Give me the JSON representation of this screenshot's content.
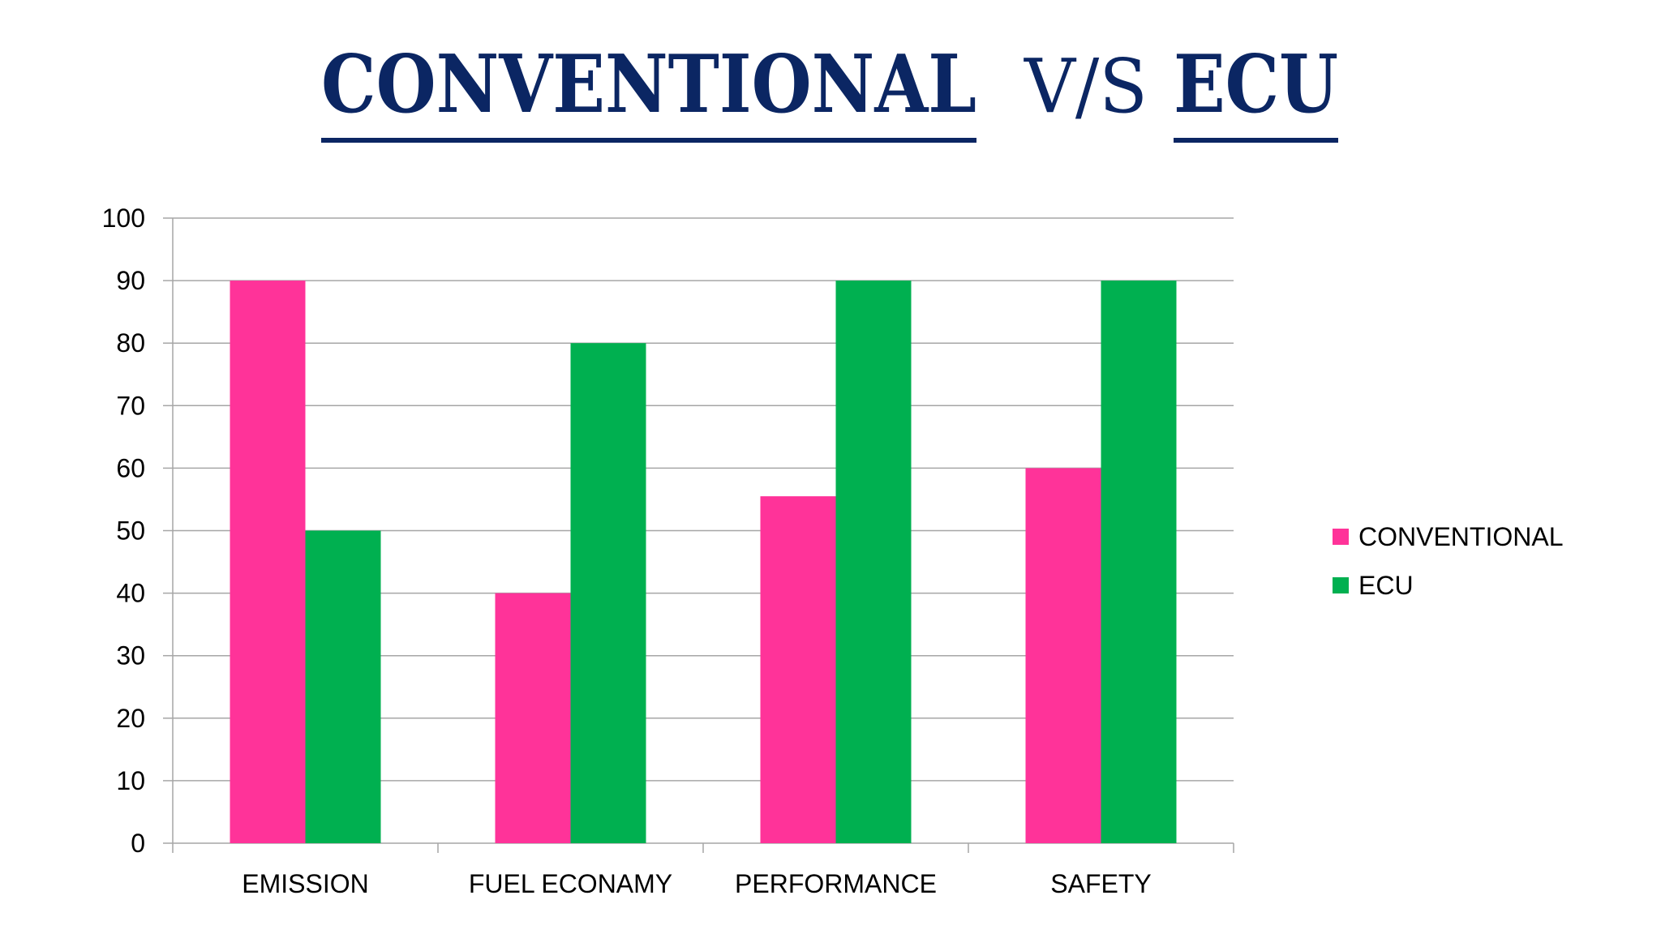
{
  "title": {
    "left": "CONVENTIONAL",
    "sep": "V/S",
    "right": "ECU",
    "color": "#0b2663"
  },
  "chart_data": {
    "type": "bar",
    "categories": [
      "EMISSION",
      "FUEL ECONAMY",
      "PERFORMANCE",
      "SAFETY"
    ],
    "series": [
      {
        "name": "CONVENTIONAL",
        "values": [
          90,
          40,
          55.5,
          60
        ],
        "color": "#ff3399"
      },
      {
        "name": "ECU",
        "values": [
          50,
          80,
          90,
          90
        ],
        "color": "#00b050"
      }
    ],
    "ylim": [
      0,
      100
    ],
    "yticks": [
      "0",
      "10",
      "20",
      "30",
      "40",
      "50",
      "60",
      "70",
      "80",
      "90",
      "100"
    ],
    "grid": true,
    "legend": "right",
    "xlabel": "",
    "ylabel": ""
  }
}
